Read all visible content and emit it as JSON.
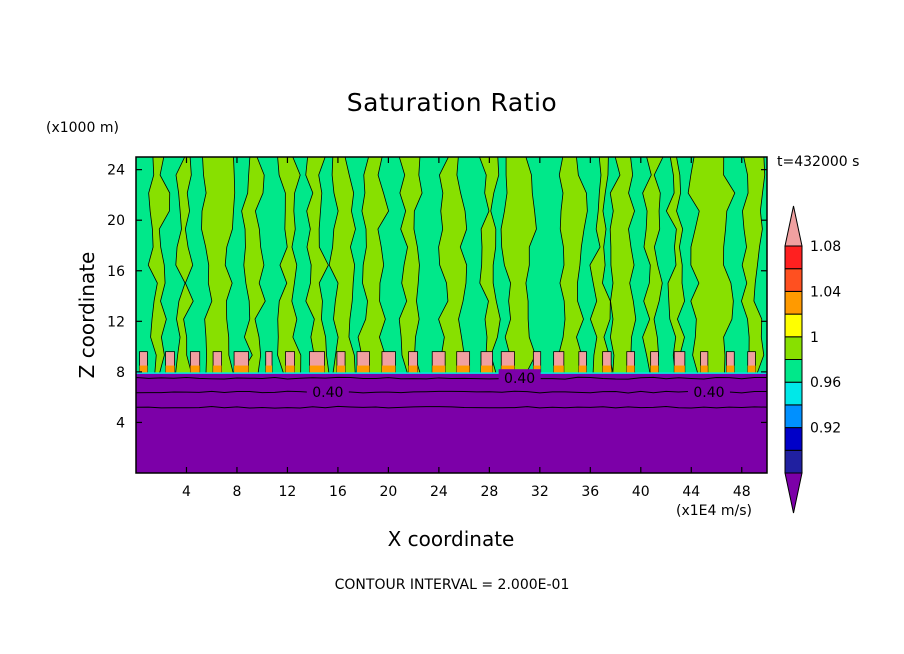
{
  "chart_data": {
    "type": "heatmap",
    "title": "Saturation Ratio",
    "xlabel": "X coordinate",
    "ylabel": "Z coordinate",
    "x_unit": "(x1E4 m/s)",
    "y_unit": "(x1000 m)",
    "time_label": "t=432000 s",
    "footer": "CONTOUR INTERVAL = 2.000E-01",
    "xlim": [
      0,
      50
    ],
    "ylim": [
      0,
      25
    ],
    "x_ticks": [
      4,
      8,
      12,
      16,
      20,
      24,
      28,
      32,
      36,
      40,
      44,
      48
    ],
    "y_ticks": [
      4,
      8,
      12,
      16,
      20,
      24
    ],
    "colorbar": {
      "levels": [
        "1.08",
        "1.04",
        "1",
        "0.96",
        "0.92"
      ],
      "colors": [
        "#7c00a8",
        "#2020a0",
        "#0000c8",
        "#0090ff",
        "#00e8e8",
        "#00e88a",
        "#88e000",
        "#ffff00",
        "#ff9a00",
        "#ff5020",
        "#ff2020",
        "#f0a0a0"
      ]
    },
    "contour_labels": [
      {
        "x": 15.2,
        "y": 6.4,
        "text": "0.40"
      },
      {
        "x": 30.4,
        "y": 7.5,
        "text": "0.40"
      },
      {
        "x": 45.4,
        "y": 6.4,
        "text": "0.40"
      }
    ],
    "lower_layer": {
      "top_z": 7.9,
      "value_color": "#7c00a8"
    },
    "upper_region": {
      "base_color": "#00e88a",
      "plume_color": "#88e000"
    }
  }
}
